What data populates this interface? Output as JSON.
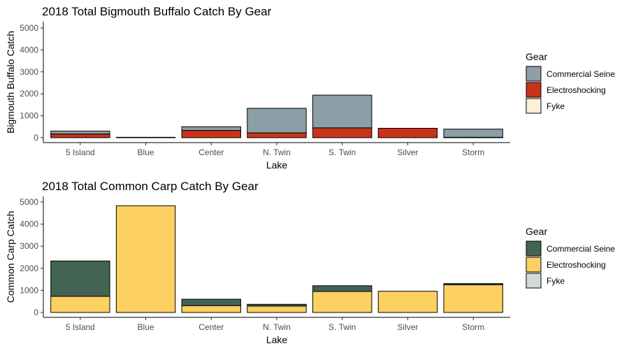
{
  "chart_data": [
    {
      "type": "bar",
      "stacked": true,
      "title": "2018 Total Bigmouth Buffalo Catch By Gear",
      "xlabel": "Lake",
      "ylabel": "Bigmouth Buffalo Catch",
      "ylim": [
        0,
        5300
      ],
      "yticks": [
        "0",
        "1000",
        "2000",
        "3000",
        "4000",
        "5000"
      ],
      "categories": [
        "5 Island",
        "Blue",
        "Center",
        "N. Twin",
        "S. Twin",
        "Silver",
        "Storm"
      ],
      "legend_title": "Gear",
      "series": [
        {
          "name": "Electroshocking",
          "color": "#c8341a",
          "values": [
            170,
            0,
            330,
            220,
            450,
            430,
            20
          ]
        },
        {
          "name": "Commercial Seine",
          "color": "#8c9ea6",
          "values": [
            130,
            20,
            170,
            1120,
            1490,
            0,
            370
          ]
        },
        {
          "name": "Fyke",
          "color": "#fcf0d4",
          "values": [
            0,
            0,
            0,
            0,
            0,
            0,
            0
          ]
        }
      ],
      "legend_order": [
        "Commercial Seine",
        "Electroshocking",
        "Fyke"
      ]
    },
    {
      "type": "bar",
      "stacked": true,
      "title": "2018 Total Common Carp Catch By Gear",
      "xlabel": "Lake",
      "ylabel": "Common Carp Catch",
      "ylim": [
        0,
        5300
      ],
      "yticks": [
        "0",
        "1000",
        "2000",
        "3000",
        "4000",
        "5000"
      ],
      "categories": [
        "5 Island",
        "Blue",
        "Center",
        "N. Twin",
        "S. Twin",
        "Silver",
        "Storm"
      ],
      "legend_title": "Gear",
      "series": [
        {
          "name": "Electroshocking",
          "color": "#fdd062",
          "values": [
            730,
            4830,
            310,
            290,
            950,
            960,
            1250
          ]
        },
        {
          "name": "Commercial Seine",
          "color": "#436353",
          "values": [
            1600,
            0,
            290,
            80,
            260,
            0,
            60
          ]
        },
        {
          "name": "Fyke",
          "color": "#d2dbd9",
          "values": [
            0,
            0,
            0,
            0,
            0,
            0,
            0
          ]
        }
      ],
      "legend_order": [
        "Commercial Seine",
        "Electroshocking",
        "Fyke"
      ]
    }
  ]
}
